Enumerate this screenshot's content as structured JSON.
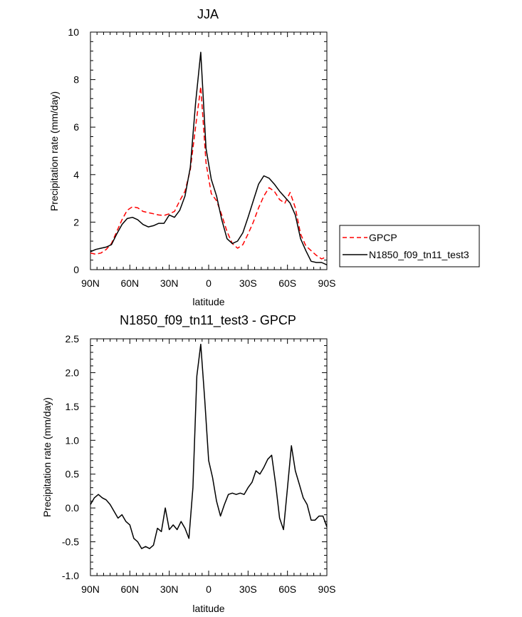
{
  "chart_data": [
    {
      "type": "line",
      "title": "JJA",
      "xlabel": "latitude",
      "ylabel": "Precipitation rate (mm/day)",
      "xlim": [
        90,
        -90
      ],
      "ylim": [
        0,
        10
      ],
      "x_ticks": [
        {
          "value": 90,
          "label": "90N"
        },
        {
          "value": 60,
          "label": "60N"
        },
        {
          "value": 30,
          "label": "30N"
        },
        {
          "value": 0,
          "label": "0"
        },
        {
          "value": -30,
          "label": "30S"
        },
        {
          "value": -60,
          "label": "60S"
        },
        {
          "value": -90,
          "label": "90S"
        }
      ],
      "y_ticks": [
        {
          "value": 0,
          "label": "0"
        },
        {
          "value": 2,
          "label": "2"
        },
        {
          "value": 4,
          "label": "4"
        },
        {
          "value": 6,
          "label": "6"
        },
        {
          "value": 8,
          "label": "8"
        },
        {
          "value": 10,
          "label": "10"
        }
      ],
      "x": [
        90,
        86,
        82,
        78,
        74,
        70,
        66,
        62,
        58,
        54,
        50,
        46,
        42,
        38,
        34,
        30,
        26,
        22,
        18,
        14,
        10,
        6,
        2,
        -2,
        -6,
        -10,
        -14,
        -18,
        -22,
        -26,
        -30,
        -34,
        -38,
        -42,
        -46,
        -50,
        -54,
        -58,
        -62,
        -66,
        -70,
        -74,
        -78,
        -82,
        -86,
        -90
      ],
      "series": [
        {
          "name": "GPCP",
          "color": "#ff0000",
          "dash": "dashed",
          "values": [
            0.7,
            0.65,
            0.7,
            0.85,
            1.1,
            1.6,
            2.1,
            2.5,
            2.65,
            2.6,
            2.45,
            2.4,
            2.35,
            2.3,
            2.28,
            2.35,
            2.45,
            2.9,
            3.3,
            4.2,
            6.0,
            7.7,
            4.5,
            3.2,
            2.9,
            2.3,
            1.6,
            1.1,
            0.9,
            1.05,
            1.5,
            2.0,
            2.6,
            3.1,
            3.45,
            3.3,
            2.95,
            2.8,
            3.25,
            2.6,
            1.5,
            1.0,
            0.8,
            0.6,
            0.45,
            0.55
          ]
        },
        {
          "name": "N1850_f09_tn11_test3",
          "color": "#000000",
          "dash": "solid",
          "values": [
            0.75,
            0.85,
            0.9,
            0.95,
            1.05,
            1.5,
            1.9,
            2.15,
            2.2,
            2.1,
            1.9,
            1.8,
            1.85,
            1.95,
            1.95,
            2.3,
            2.2,
            2.5,
            3.1,
            4.3,
            7.0,
            9.15,
            5.1,
            3.8,
            3.1,
            2.1,
            1.3,
            1.1,
            1.2,
            1.55,
            2.2,
            2.9,
            3.6,
            3.95,
            3.85,
            3.6,
            3.3,
            3.05,
            2.8,
            2.3,
            1.3,
            0.8,
            0.35,
            0.3,
            0.3,
            0.2
          ]
        }
      ],
      "legend": {
        "placement": "right",
        "entries": [
          {
            "label": "GPCP",
            "color": "#ff0000",
            "dash": "dashed"
          },
          {
            "label": "N1850_f09_tn11_test3",
            "color": "#000000",
            "dash": "solid"
          }
        ]
      },
      "grid": false
    },
    {
      "type": "line",
      "title": "N1850_f09_tn11_test3 - GPCP",
      "xlabel": "latitude",
      "ylabel": "Precipitation rate (mm/day)",
      "xlim": [
        90,
        -90
      ],
      "ylim": [
        -1.0,
        2.5
      ],
      "x_ticks": [
        {
          "value": 90,
          "label": "90N"
        },
        {
          "value": 60,
          "label": "60N"
        },
        {
          "value": 30,
          "label": "30N"
        },
        {
          "value": 0,
          "label": "0"
        },
        {
          "value": -30,
          "label": "30S"
        },
        {
          "value": -60,
          "label": "60S"
        },
        {
          "value": -90,
          "label": "90S"
        }
      ],
      "y_ticks": [
        {
          "value": -1.0,
          "label": "-1.0"
        },
        {
          "value": -0.5,
          "label": "-0.5"
        },
        {
          "value": 0.0,
          "label": "0.0"
        },
        {
          "value": 0.5,
          "label": "0.5"
        },
        {
          "value": 1.0,
          "label": "1.0"
        },
        {
          "value": 1.5,
          "label": "1.5"
        },
        {
          "value": 2.0,
          "label": "2.0"
        },
        {
          "value": 2.5,
          "label": "2.5"
        }
      ],
      "x": [
        90,
        87,
        84,
        81,
        78,
        75,
        72,
        69,
        66,
        63,
        60,
        57,
        54,
        51,
        48,
        45,
        42,
        39,
        36,
        33,
        30,
        27,
        24,
        21,
        18,
        15,
        12,
        9,
        6,
        3,
        0,
        -3,
        -6,
        -9,
        -12,
        -15,
        -18,
        -21,
        -24,
        -27,
        -30,
        -33,
        -36,
        -39,
        -42,
        -45,
        -48,
        -51,
        -54,
        -57,
        -60,
        -63,
        -66,
        -69,
        -72,
        -75,
        -78,
        -81,
        -84,
        -87,
        -90
      ],
      "series": [
        {
          "name": "N1850_f09_tn11_test3 - GPCP",
          "color": "#000000",
          "dash": "solid",
          "values": [
            0.05,
            0.15,
            0.2,
            0.15,
            0.12,
            0.05,
            -0.05,
            -0.15,
            -0.1,
            -0.2,
            -0.25,
            -0.45,
            -0.5,
            -0.6,
            -0.57,
            -0.6,
            -0.55,
            -0.3,
            -0.35,
            0.0,
            -0.32,
            -0.25,
            -0.32,
            -0.2,
            -0.3,
            -0.45,
            0.3,
            1.95,
            2.42,
            1.6,
            0.7,
            0.45,
            0.1,
            -0.12,
            0.05,
            0.2,
            0.22,
            0.2,
            0.22,
            0.2,
            0.3,
            0.38,
            0.55,
            0.5,
            0.6,
            0.72,
            0.78,
            0.35,
            -0.15,
            -0.32,
            0.3,
            0.92,
            0.55,
            0.35,
            0.15,
            0.05,
            -0.18,
            -0.18,
            -0.12,
            -0.12,
            -0.28
          ]
        }
      ],
      "grid": false
    }
  ]
}
